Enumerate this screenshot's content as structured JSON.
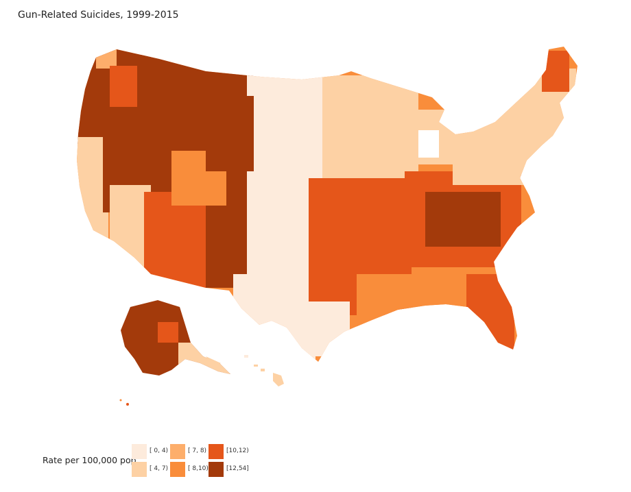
{
  "title": "Gun-Related Suicides, 1999-2015",
  "legend": {
    "title": "Rate per 100,000 pop.",
    "bins": [
      {
        "label": "[ 0, 4)",
        "color": "#fdebdc"
      },
      {
        "label": "[ 4, 7)",
        "color": "#fdd1a4"
      },
      {
        "label": "[ 7, 8)",
        "color": "#fdae6b"
      },
      {
        "label": "[ 8,10)",
        "color": "#f98d3b"
      },
      {
        "label": "[10,12)",
        "color": "#e5561a"
      },
      {
        "label": "[12,54]",
        "color": "#a33a0b"
      }
    ]
  },
  "map": {
    "region": "United States counties",
    "colors": {
      "high": "#a33a0b",
      "mid_high": "#e5561a",
      "mid": "#f98d3b",
      "mid_low": "#fdae6b",
      "low": "#fdd1a4",
      "lowest": "#fdebdc"
    }
  }
}
